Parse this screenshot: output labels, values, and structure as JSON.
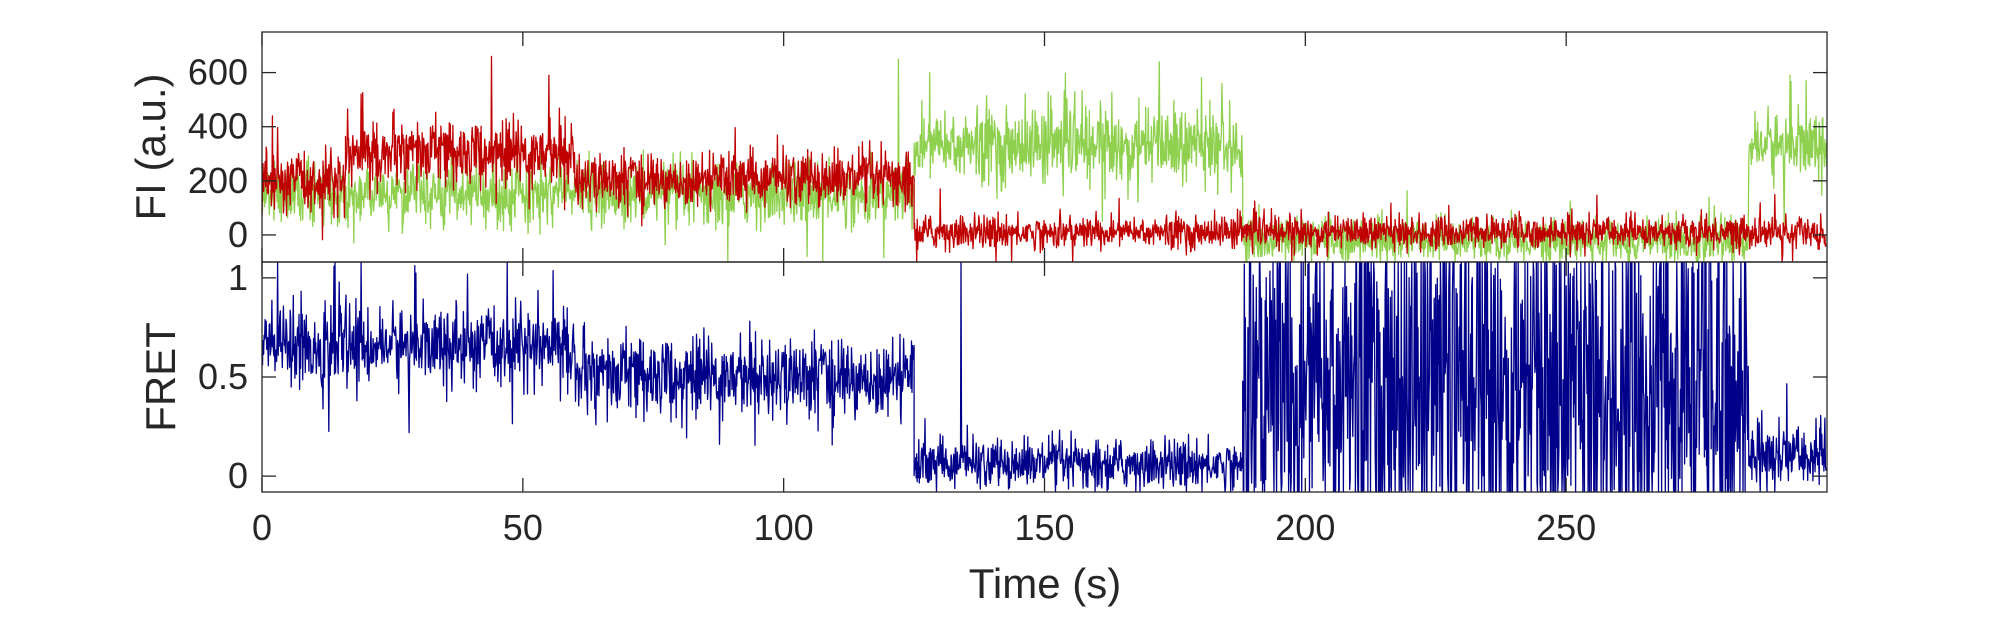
{
  "chart_data": [
    {
      "type": "line",
      "panel": "top",
      "title": "",
      "xlabel": "",
      "ylabel": "FI (a.u.)",
      "xlim": [
        0,
        300
      ],
      "ylim": [
        -100,
        750
      ],
      "xticks": [
        0,
        50,
        100,
        150,
        200,
        250
      ],
      "yticks": [
        0,
        200,
        400,
        600
      ],
      "ytick_labels": [
        "0",
        "200",
        "400",
        "600"
      ],
      "grid": false,
      "legend": "none",
      "series": [
        {
          "color": "#8fd14f",
          "segments": [
            {
              "t0": 0,
              "t1": 125,
              "mean": 150,
              "noise": 55
            },
            {
              "t0": 125,
              "t1": 188,
              "mean": 330,
              "noise": 70
            },
            {
              "t0": 188,
              "t1": 285,
              "mean": -20,
              "noise": 40
            },
            {
              "t0": 285,
              "t1": 300,
              "mean": 330,
              "noise": 65
            }
          ],
          "spikes": [
            [
              122,
              650
            ],
            [
              128,
              600
            ],
            [
              172,
              640
            ],
            [
              184,
              560
            ],
            [
              296,
              570
            ]
          ]
        },
        {
          "color": "#c00000",
          "segments": [
            {
              "t0": 0,
              "t1": 16,
              "mean": 200,
              "noise": 55
            },
            {
              "t0": 16,
              "t1": 60,
              "mean": 300,
              "noise": 60
            },
            {
              "t0": 60,
              "t1": 125,
              "mean": 205,
              "noise": 50
            },
            {
              "t0": 125,
              "t1": 300,
              "mean": 10,
              "noise": 30
            }
          ],
          "spikes": [
            [
              2,
              440
            ],
            [
              19,
              520
            ],
            [
              44,
              660
            ],
            [
              55,
              590
            ],
            [
              130,
              170
            ],
            [
              290,
              150
            ]
          ]
        }
      ]
    },
    {
      "type": "line",
      "panel": "bottom",
      "title": "",
      "xlabel": "Time (s)",
      "ylabel": "FRET",
      "xlim": [
        0,
        300
      ],
      "ylim": [
        -0.08,
        1.08
      ],
      "xticks": [
        0,
        50,
        100,
        150,
        200,
        250
      ],
      "xtick_labels": [
        "0",
        "50",
        "100",
        "150",
        "200",
        "250"
      ],
      "yticks": [
        0,
        0.5,
        1
      ],
      "ytick_labels": [
        "0",
        "0.5",
        "1"
      ],
      "grid": false,
      "legend": "none",
      "series": [
        {
          "color": "#00008b",
          "segments": [
            {
              "t0": 0,
              "t1": 60,
              "mean": 0.66,
              "noise": 0.1
            },
            {
              "t0": 60,
              "t1": 125,
              "mean": 0.5,
              "noise": 0.1
            },
            {
              "t0": 125,
              "t1": 188,
              "mean": 0.06,
              "noise": 0.06,
              "clip_low": true
            },
            {
              "t0": 188,
              "t1": 285,
              "mean": 0.45,
              "noise": 0.55,
              "clip_low": true,
              "clip_high": true
            },
            {
              "t0": 285,
              "t1": 300,
              "mean": 0.1,
              "noise": 0.08,
              "clip_low": true
            }
          ],
          "spikes": [
            [
              3,
              1.08
            ],
            [
              14,
              1.08
            ],
            [
              19,
              1.08
            ],
            [
              47,
              1.08
            ],
            [
              134,
              1.08
            ]
          ]
        }
      ]
    }
  ]
}
